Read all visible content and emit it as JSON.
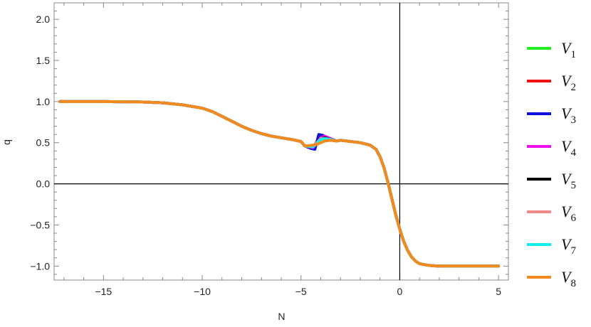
{
  "chart_data": {
    "type": "line",
    "xlabel": "N",
    "ylabel": "q",
    "xlim": [
      -17.5,
      5.5
    ],
    "ylim": [
      -1.17,
      2.2
    ],
    "xticks": [
      -15,
      -10,
      -5,
      0,
      5
    ],
    "xtick_labels": [
      "−15",
      "−10",
      "−5",
      "0",
      "5"
    ],
    "yticks": [
      -1.0,
      -0.5,
      0.0,
      0.5,
      1.0,
      1.5,
      2.0
    ],
    "ytick_labels": [
      "−1.0",
      "−0.5",
      "0.0",
      "0.5",
      "1.0",
      "1.5",
      "2.0"
    ],
    "grid": false,
    "legend_position": "right",
    "base_curve": {
      "x": [
        -17.2,
        -15,
        -13,
        -12,
        -11,
        -10,
        -9.5,
        -9,
        -8.5,
        -8,
        -7.5,
        -7,
        -6.5,
        -6,
        -5.5,
        -5,
        -4.5,
        -4.3,
        -4,
        -3.5,
        -3,
        -2.5,
        -2,
        -1.5,
        -1.2,
        -1,
        -0.8,
        -0.6,
        -0.4,
        -0.2,
        0,
        0.2,
        0.4,
        0.6,
        0.8,
        1.0,
        1.3,
        1.6,
        2.0,
        3,
        4,
        5
      ],
      "y": [
        1.0,
        1.0,
        0.995,
        0.985,
        0.96,
        0.92,
        0.88,
        0.82,
        0.76,
        0.7,
        0.65,
        0.61,
        0.58,
        0.56,
        0.54,
        0.515,
        0.49,
        0.48,
        0.5,
        0.53,
        0.53,
        0.515,
        0.5,
        0.47,
        0.42,
        0.33,
        0.2,
        0.02,
        -0.18,
        -0.38,
        -0.55,
        -0.7,
        -0.81,
        -0.89,
        -0.94,
        -0.97,
        -0.985,
        -0.995,
        -1.0,
        -1.0,
        -1.0,
        -1.0
      ]
    },
    "series": [
      {
        "name": "V",
        "sub": "1",
        "color": "#22ee22",
        "wiggle": {
          "x": [
            -4.8,
            -4.4,
            -4.2,
            -4.0,
            -3.8,
            -3.5,
            -3.2
          ],
          "y": [
            0.46,
            0.44,
            0.5,
            0.56,
            0.56,
            0.54,
            0.52
          ]
        }
      },
      {
        "name": "V",
        "sub": "2",
        "color": "#ee1111",
        "wiggle": {
          "x": [
            -4.8,
            -4.4,
            -4.2,
            -4.0,
            -3.8,
            -3.5,
            -3.2
          ],
          "y": [
            0.46,
            0.44,
            0.51,
            0.57,
            0.56,
            0.53,
            0.52
          ]
        }
      },
      {
        "name": "V",
        "sub": "3",
        "color": "#1111dd",
        "wiggle": {
          "x": [
            -4.8,
            -4.5,
            -4.3,
            -4.1,
            -3.9,
            -3.6,
            -3.2
          ],
          "y": [
            0.46,
            0.43,
            0.42,
            0.6,
            0.59,
            0.55,
            0.52
          ]
        }
      },
      {
        "name": "V",
        "sub": "4",
        "color": "#ee11ee",
        "wiggle": {
          "x": [
            -4.8,
            -4.4,
            -4.2,
            -4.0,
            -3.8,
            -3.5,
            -3.2
          ],
          "y": [
            0.46,
            0.44,
            0.49,
            0.56,
            0.58,
            0.55,
            0.52
          ]
        }
      },
      {
        "name": "V",
        "sub": "5",
        "color": "#000000",
        "wiggle": {
          "x": [
            -4.8,
            -4.4,
            -4.2,
            -4.0,
            -3.8,
            -3.5,
            -3.2
          ],
          "y": [
            0.46,
            0.45,
            0.5,
            0.55,
            0.56,
            0.54,
            0.52
          ]
        }
      },
      {
        "name": "V",
        "sub": "6",
        "color": "#f08a8a",
        "wiggle": {
          "x": [
            -4.8,
            -4.4,
            -4.2,
            -4.0,
            -3.8,
            -3.5,
            -3.2
          ],
          "y": [
            0.46,
            0.45,
            0.5,
            0.55,
            0.55,
            0.54,
            0.52
          ]
        }
      },
      {
        "name": "V",
        "sub": "7",
        "color": "#11eeee",
        "wiggle": {
          "x": [
            -4.8,
            -4.4,
            -4.2,
            -4.0,
            -3.8,
            -3.5,
            -3.2
          ],
          "y": [
            0.46,
            0.45,
            0.49,
            0.54,
            0.55,
            0.54,
            0.52
          ]
        }
      },
      {
        "name": "V",
        "sub": "8",
        "color": "#f28a1e",
        "wiggle": {
          "x": [
            -4.8,
            -4.4,
            -4.2,
            -4.0,
            -3.8,
            -3.5,
            -3.2
          ],
          "y": [
            0.46,
            0.47,
            0.48,
            0.5,
            0.52,
            0.53,
            0.52
          ]
        }
      }
    ]
  }
}
